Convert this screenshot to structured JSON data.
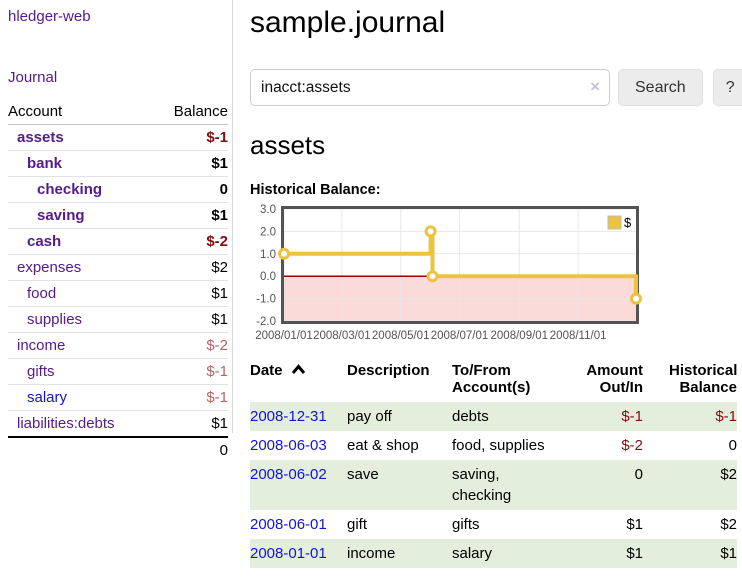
{
  "app": {
    "brand": "hledger-web",
    "nav_journal": "Journal"
  },
  "sidebar": {
    "headers": {
      "account": "Account",
      "balance": "Balance"
    },
    "accounts": [
      {
        "label": "assets",
        "value": "$-1",
        "depth": 1,
        "bold": true,
        "neg": "strong"
      },
      {
        "label": "bank",
        "value": "$1",
        "depth": 2,
        "bold": true
      },
      {
        "label": "checking",
        "value": "0",
        "depth": 3,
        "bold": true
      },
      {
        "label": "saving",
        "value": "$1",
        "depth": 3,
        "bold": true
      },
      {
        "label": "cash",
        "value": "$-2",
        "depth": 2,
        "bold": true,
        "neg": "strong"
      },
      {
        "label": "expenses",
        "value": "$2",
        "depth": 1
      },
      {
        "label": "food",
        "value": "$1",
        "depth": 2
      },
      {
        "label": "supplies",
        "value": "$1",
        "depth": 2
      },
      {
        "label": "income",
        "value": "$-2",
        "depth": 1,
        "neg": "soft"
      },
      {
        "label": "gifts",
        "value": "$-1",
        "depth": 2,
        "neg": "soft"
      },
      {
        "label": "salary",
        "value": "$-1",
        "depth": 2,
        "neg": "soft",
        "link_color": "blue"
      },
      {
        "label": "liabilities:debts",
        "value": "$1",
        "depth": 1
      }
    ],
    "total": "0"
  },
  "header": {
    "title": "sample.journal"
  },
  "search": {
    "value": "inacct:assets",
    "clear_icon": "×",
    "button": "Search",
    "help_button": "?"
  },
  "content": {
    "heading": "assets",
    "chart_label": "Historical Balance:"
  },
  "chart_data": {
    "type": "line",
    "title": "Historical Balance",
    "series": [
      {
        "name": "$",
        "color": "#edc240",
        "step": true,
        "points": [
          [
            "2008-01-01",
            1
          ],
          [
            "2008-06-01",
            2
          ],
          [
            "2008-06-03",
            0
          ],
          [
            "2008-12-31",
            -1
          ]
        ]
      }
    ],
    "x_ticks": [
      "2008/01/01",
      "2008/03/01",
      "2008/05/01",
      "2008/07/01",
      "2008/09/01",
      "2008/11/01"
    ],
    "y_ticks": [
      "3.0",
      "2.0",
      "1.0",
      "0.0",
      "-1.0",
      "-2.0"
    ],
    "xlim": [
      "2008-01-01",
      "2008-12-31"
    ],
    "ylim": [
      -2,
      3
    ],
    "grid": true,
    "legend": {
      "label": "$",
      "position": "top-right"
    },
    "negative_region": {
      "below": 0,
      "fill": "#fbdada",
      "line_color": "#990000"
    }
  },
  "register": {
    "headers": {
      "date": "Date",
      "description": "Description",
      "accounts": "To/From Account(s)",
      "amount": "Amount Out/In",
      "balance": "Historical Balance"
    },
    "rows": [
      {
        "date": "2008-12-31",
        "description": "pay off",
        "accounts": "debts",
        "amount": "$-1",
        "balance": "$-1"
      },
      {
        "date": "2008-06-03",
        "description": "eat & shop",
        "accounts": "food, supplies",
        "amount": "$-2",
        "balance": "0"
      },
      {
        "date": "2008-06-02",
        "description": "save",
        "accounts": "saving, checking",
        "amount": "0",
        "balance": "$2"
      },
      {
        "date": "2008-06-01",
        "description": "gift",
        "accounts": "gifts",
        "amount": "$1",
        "balance": "$2"
      },
      {
        "date": "2008-01-01",
        "description": "income",
        "accounts": "salary",
        "amount": "$1",
        "balance": "$1"
      }
    ]
  },
  "colors": {
    "link_purple": "#551a8b",
    "link_blue": "#1414d6",
    "negative_strong": "#7d1010",
    "negative_soft": "#b26565",
    "row_stripe_green": "#e3eedd",
    "chart_line_gold": "#edc240",
    "chart_negative_fill": "#fbdada",
    "chart_zero_line": "#990000",
    "chart_border": "#545454",
    "chart_grid": "#e7e7e7",
    "button_bg": "#ececec"
  }
}
